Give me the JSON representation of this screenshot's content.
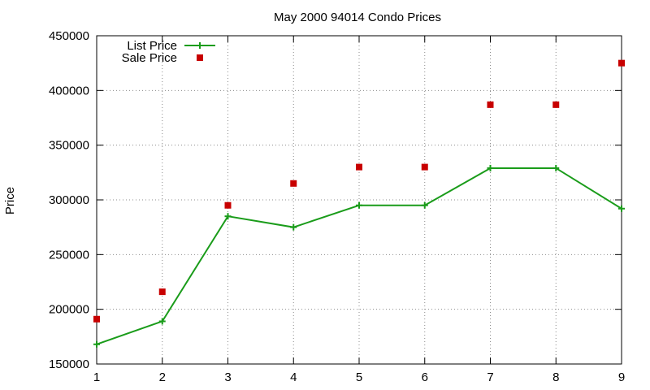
{
  "chart_data": {
    "type": "line",
    "title": "May 2000 94014 Condo Prices",
    "xlabel": "",
    "ylabel": "Price",
    "x": [
      1,
      2,
      3,
      4,
      5,
      6,
      7,
      8,
      9
    ],
    "xlim": [
      1,
      9
    ],
    "ylim": [
      150000,
      450000
    ],
    "xticks": [
      "1",
      "2",
      "3",
      "4",
      "5",
      "6",
      "7",
      "8",
      "9"
    ],
    "yticks": [
      "150000",
      "200000",
      "250000",
      "300000",
      "350000",
      "400000",
      "450000"
    ],
    "grid": true,
    "legend_position": "top-left",
    "series": [
      {
        "name": "List Price",
        "style": "line+cross",
        "color": "#1a9c1a",
        "values": [
          168000,
          189000,
          285000,
          275000,
          295000,
          295000,
          329000,
          329000,
          292000
        ]
      },
      {
        "name": "Sale Price",
        "style": "square-points",
        "color": "#c80000",
        "values": [
          191000,
          216000,
          295000,
          315000,
          330000,
          330000,
          387000,
          387000,
          425000
        ]
      }
    ]
  }
}
